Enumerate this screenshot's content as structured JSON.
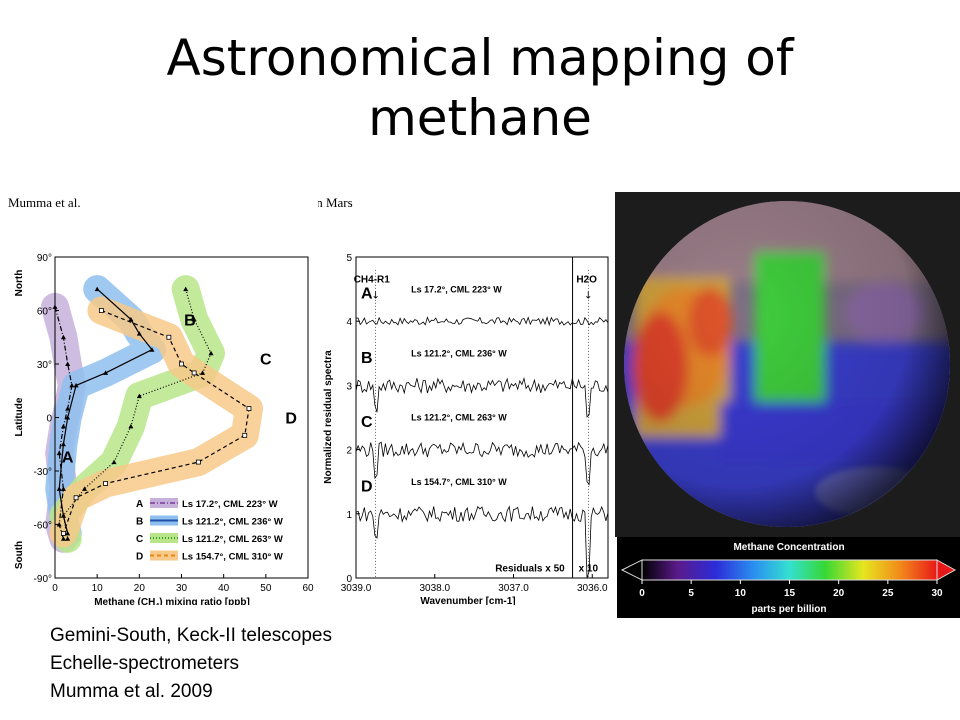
{
  "slide": {
    "title": "Astronomical mapping of methane",
    "caption_lines": [
      "Gemini-South, Keck-II telescopes",
      "Echelle-spectrometers",
      "Mumma et al. 2009"
    ]
  },
  "figure_header": {
    "left": "Mumma et al.",
    "right": "Methane on Mars"
  },
  "colors": {
    "A": "#8c5aa8",
    "B": "#1f4fa8",
    "C": "#3d9e28",
    "D": "#e08a1a",
    "A_band": "#c6b0dc",
    "B_band": "#8fbfef",
    "C_band": "#b8e58a",
    "D_band": "#f7c98a"
  },
  "chart_data": [
    {
      "type": "line",
      "xlabel": "Methane (CH4) mixing ratio [ppb]",
      "ylabel": "Latitude",
      "y_side_labels": {
        "top": "North",
        "bottom": "South"
      },
      "xlim": [
        0,
        60
      ],
      "ylim": [
        -90,
        90
      ],
      "x_ticks": [
        0,
        10,
        20,
        30,
        40,
        50,
        60
      ],
      "y_ticks": [
        "90°",
        "60°",
        "30°",
        "0",
        "-30°",
        "-60°",
        "-90°"
      ],
      "legend_position": "bottom-right",
      "series": [
        {
          "name": "A",
          "legend": "Ls 17.2°, CML 223° W",
          "label_at": [
            3,
            -22
          ],
          "points": [
            [
              0,
              62
            ],
            [
              2,
              45
            ],
            [
              3,
              30
            ],
            [
              4,
              18
            ],
            [
              3,
              5
            ],
            [
              2,
              -5
            ],
            [
              1,
              -20
            ],
            [
              2,
              -40
            ],
            [
              1,
              -60
            ],
            [
              2,
              -68
            ]
          ]
        },
        {
          "name": "B",
          "legend": "Ls 121.2°, CML 236° W",
          "label_at": [
            32,
            55
          ],
          "points": [
            [
              10,
              72
            ],
            [
              18,
              55
            ],
            [
              20,
              47
            ],
            [
              23,
              38
            ],
            [
              12,
              25
            ],
            [
              5,
              18
            ],
            [
              3,
              0
            ],
            [
              2,
              -15
            ],
            [
              1,
              -40
            ],
            [
              2,
              -55
            ],
            [
              3,
              -65
            ]
          ]
        },
        {
          "name": "C",
          "legend": "Ls 121.2°, CML 263° W",
          "label_at": [
            50,
            33
          ],
          "points": [
            [
              31,
              72
            ],
            [
              33,
              55
            ],
            [
              37,
              36
            ],
            [
              35,
              25
            ],
            [
              20,
              12
            ],
            [
              18,
              -5
            ],
            [
              14,
              -25
            ],
            [
              7,
              -40
            ],
            [
              2,
              -55
            ],
            [
              3,
              -68
            ]
          ]
        },
        {
          "name": "D",
          "legend": "Ls 154.7°, CML 310° W",
          "label_at": [
            56,
            0
          ],
          "points": [
            [
              11,
              60
            ],
            [
              27,
              45
            ],
            [
              30,
              30
            ],
            [
              33,
              25
            ],
            [
              46,
              5
            ],
            [
              45,
              -10
            ],
            [
              34,
              -25
            ],
            [
              12,
              -37
            ],
            [
              5,
              -45
            ],
            [
              2,
              -65
            ]
          ]
        }
      ]
    },
    {
      "type": "line",
      "xlabel": "Wavenumber [cm-1]",
      "ylabel": "Normalized residual spectra",
      "x_ticks": [
        "3039.0",
        "3038.0",
        "3037.0",
        "3036.0"
      ],
      "xlim": [
        3039.0,
        3035.8
      ],
      "ylim": [
        0,
        5
      ],
      "y_ticks": [
        0,
        1,
        2,
        3,
        4,
        5
      ],
      "annotations": [
        "CH4-R1",
        "H2O",
        "Residuals x 50",
        "x 10"
      ],
      "series": [
        {
          "name": "A",
          "label": "Ls 17.2°, CML 223° W",
          "baseline": 4
        },
        {
          "name": "B",
          "label": "Ls 121.2°, CML 236° W",
          "baseline": 3
        },
        {
          "name": "C",
          "label": "Ls 121.2°, CML 263° W",
          "baseline": 2
        },
        {
          "name": "D",
          "label": "Ls 154.7°, CML 310° W",
          "baseline": 1
        }
      ]
    },
    {
      "type": "heatmap",
      "title": "Methane Concentration",
      "xlabel": "parts per billion",
      "colorbar_ticks": [
        0,
        5,
        10,
        15,
        20,
        25,
        30
      ],
      "range": [
        0,
        30
      ]
    }
  ]
}
